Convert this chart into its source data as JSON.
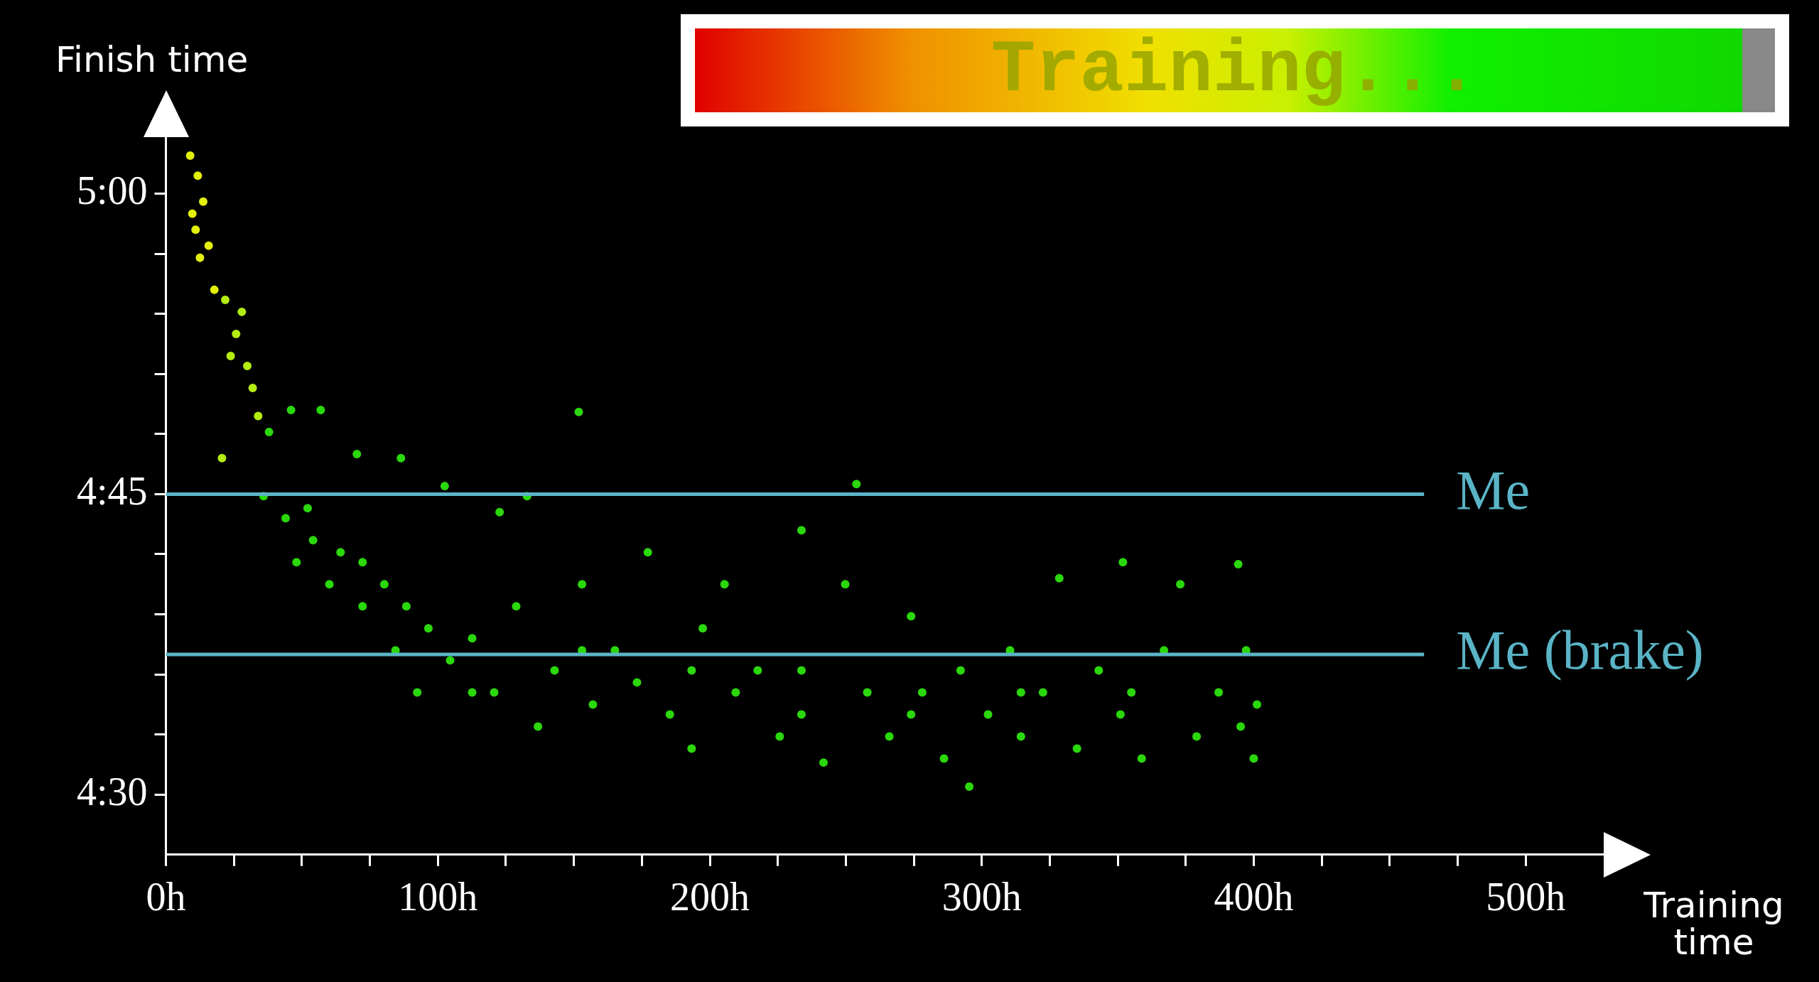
{
  "chart_data": {
    "type": "scatter",
    "xlabel": "Training time",
    "ylabel": "Finish time",
    "xlim": [
      0,
      530
    ],
    "xticks": [
      {
        "value": 0,
        "label": "0h"
      },
      {
        "value": 25,
        "label": null
      },
      {
        "value": 50,
        "label": null
      },
      {
        "value": 75,
        "label": null
      },
      {
        "value": 100,
        "label": "100h"
      },
      {
        "value": 125,
        "label": null
      },
      {
        "value": 150,
        "label": null
      },
      {
        "value": 175,
        "label": null
      },
      {
        "value": 200,
        "label": "200h"
      },
      {
        "value": 225,
        "label": null
      },
      {
        "value": 250,
        "label": null
      },
      {
        "value": 275,
        "label": null
      },
      {
        "value": 300,
        "label": "300h"
      },
      {
        "value": 325,
        "label": null
      },
      {
        "value": 350,
        "label": null
      },
      {
        "value": 375,
        "label": null
      },
      {
        "value": 400,
        "label": "400h"
      },
      {
        "value": 425,
        "label": null
      },
      {
        "value": 450,
        "label": null
      },
      {
        "value": 475,
        "label": null
      },
      {
        "value": 500,
        "label": "500h"
      }
    ],
    "ylim": [
      267,
      303
    ],
    "yticks": [
      {
        "value": 270,
        "label": "4:30"
      },
      {
        "value": 273,
        "label": null
      },
      {
        "value": 276,
        "label": null
      },
      {
        "value": 279,
        "label": null
      },
      {
        "value": 282,
        "label": null
      },
      {
        "value": 285,
        "label": "4:45"
      },
      {
        "value": 288,
        "label": null
      },
      {
        "value": 291,
        "label": null
      },
      {
        "value": 294,
        "label": null
      },
      {
        "value": 297,
        "label": null
      },
      {
        "value": 300,
        "label": "5:00"
      }
    ],
    "marker": "circle",
    "series": [
      {
        "color": "#e2f00c",
        "x": [
          8.9,
          11.7,
          9.7,
          13.7,
          12.5,
          15.7,
          17.8,
          10.9
        ],
        "values": [
          301.9,
          300.9,
          299.0,
          299.6,
          296.8,
          297.4,
          295.2,
          298.2
        ]
      },
      {
        "color": "#b4ec12",
        "x": [
          21.8,
          25.8,
          27.9,
          29.9,
          31.9,
          20.6,
          33.9,
          23.8
        ],
        "values": [
          294.7,
          293.0,
          294.1,
          291.4,
          290.3,
          286.8,
          288.9,
          291.9
        ]
      },
      {
        "color": "#2ad80c",
        "x": [
          37.9,
          46,
          56.9,
          35.9,
          44,
          48,
          54.1,
          60.1,
          64.2,
          70.2,
          72.3,
          80.3,
          86.4,
          84.4,
          88.4,
          96.5,
          102.5,
          104.5,
          112.6,
          120.7,
          122.7,
          132.8,
          128.8,
          136.8,
          142.9,
          151.8,
          153,
          157,
          165.1,
          173.2,
          177.2,
          185.3,
          193.3,
          197.4,
          205.4,
          209.5,
          217.6,
          225.7,
          233.7,
          233.7,
          241.8,
          249.8,
          253.9,
          257.9,
          266,
          274,
          278.1,
          286.1,
          292.2,
          295.4,
          302.3,
          310.4,
          314.4,
          322.5,
          328.5,
          335,
          343,
          351,
          351.9,
          358.8,
          367,
          373,
          379,
          387.1,
          394.3,
          397.2,
          400,
          401.2,
          395.2,
          193.3,
          112.6,
          153,
          72.3,
          52.1,
          92.4,
          314.4,
          355,
          233.7,
          274
        ],
        "values": [
          288.1,
          289.2,
          289.2,
          284.9,
          283.8,
          281.6,
          282.7,
          280.5,
          282.1,
          287.0,
          279.4,
          280.5,
          286.8,
          277.2,
          279.4,
          278.3,
          285.4,
          276.7,
          277.8,
          275.1,
          284.1,
          284.9,
          279.4,
          273.4,
          276.2,
          289.1,
          280.5,
          274.5,
          277.2,
          275.6,
          282.1,
          274.0,
          272.3,
          278.3,
          280.5,
          275.1,
          276.2,
          272.9,
          283.2,
          276.2,
          271.6,
          280.5,
          285.5,
          275.1,
          272.9,
          278.9,
          275.1,
          271.8,
          276.2,
          270.4,
          274.0,
          277.2,
          272.9,
          275.1,
          280.8,
          272.3,
          276.2,
          274.0,
          281.6,
          271.8,
          277.2,
          280.5,
          272.9,
          275.1,
          281.5,
          277.2,
          271.8,
          274.5,
          273.4,
          276.2,
          275.1,
          277.2,
          281.6,
          284.3,
          275.1,
          275.1,
          275.1,
          274.0,
          274.0
        ]
      }
    ],
    "ref_lines": [
      {
        "axis": "y",
        "value": 285,
        "label": "Me",
        "color": "#5ab4c6"
      },
      {
        "axis": "y",
        "value": 277,
        "label": "Me (brake)",
        "color": "#5ab4c6"
      }
    ],
    "annotations": [
      "Training..."
    ]
  }
}
